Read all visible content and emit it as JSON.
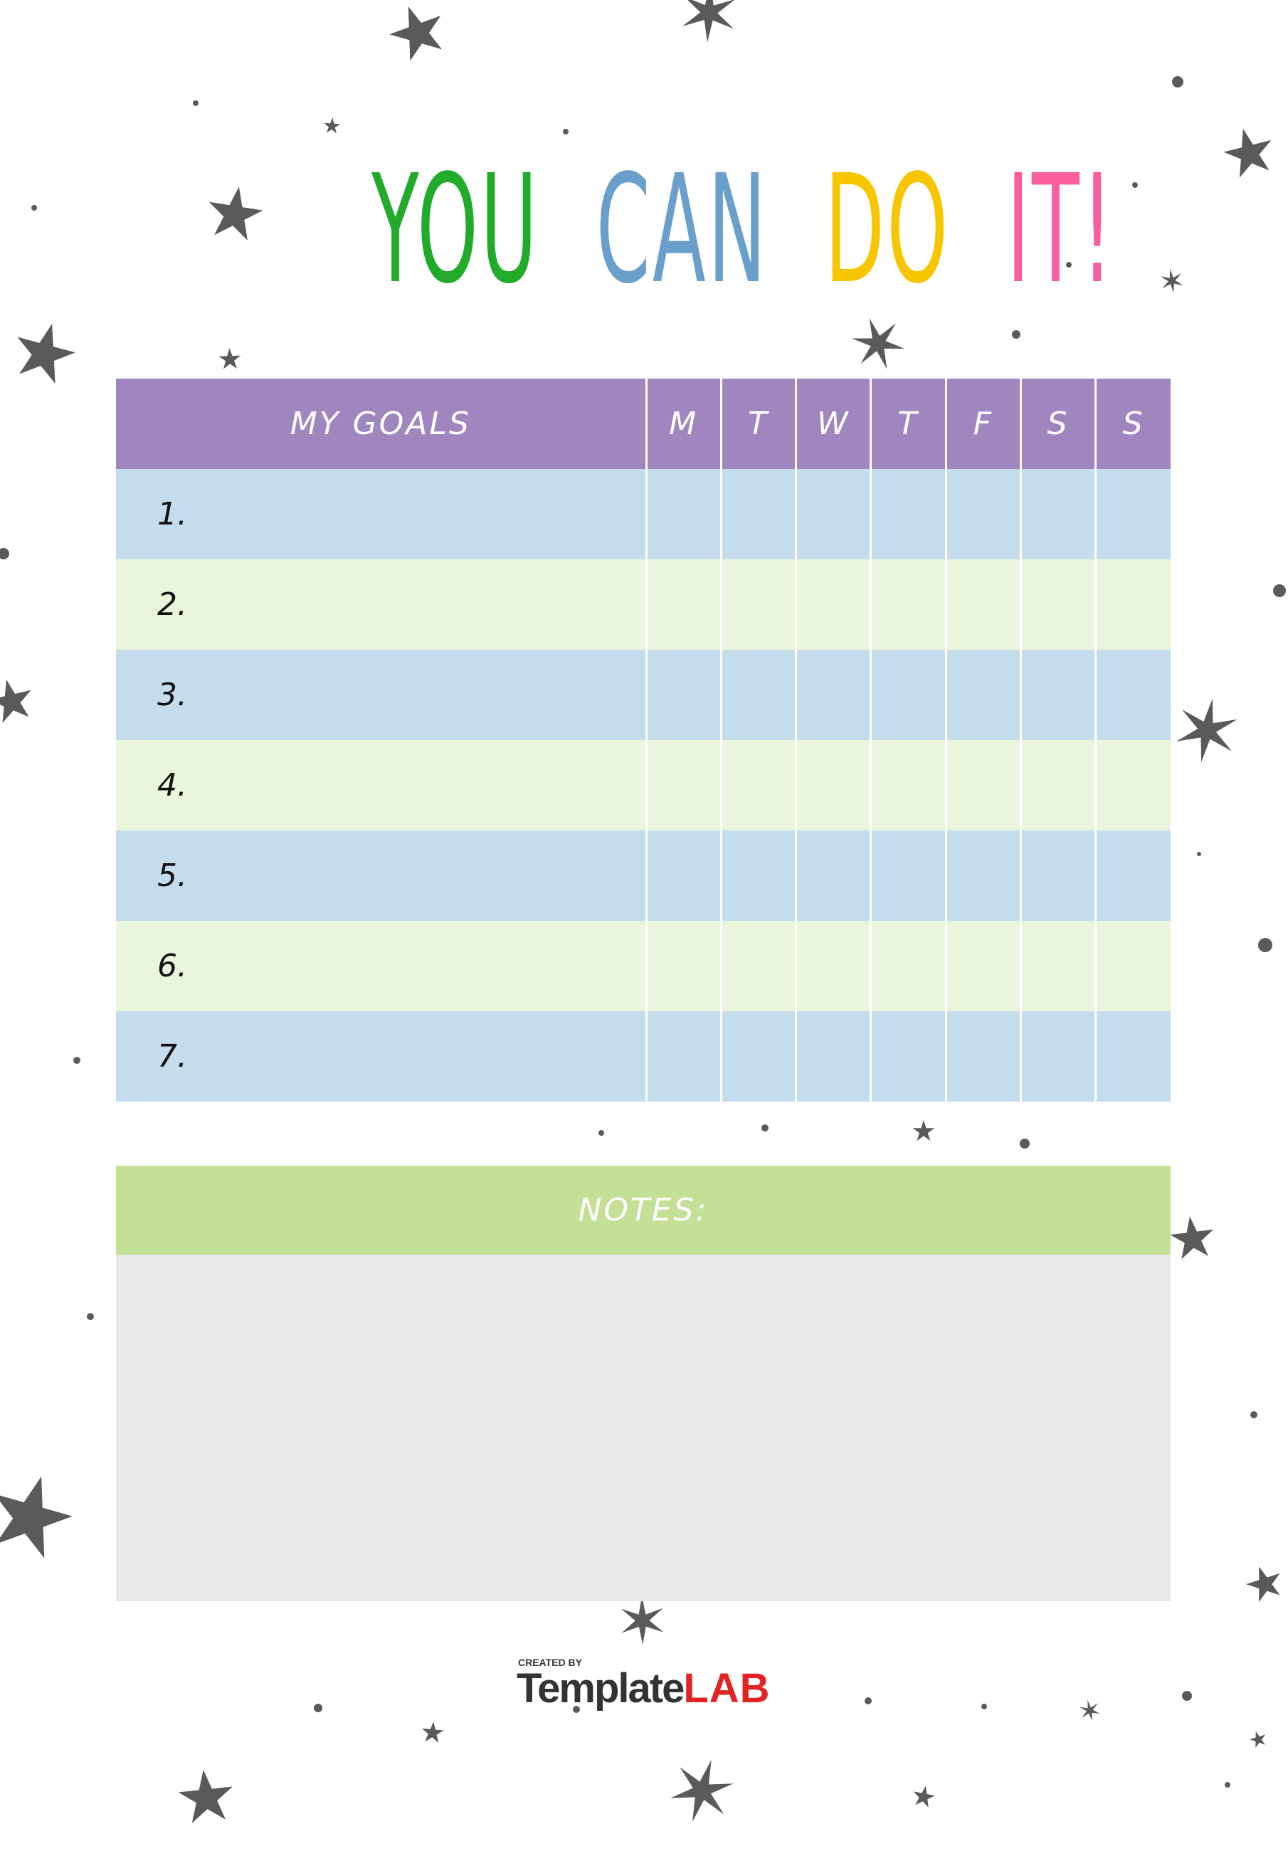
{
  "title": {
    "words": [
      {
        "text": "YOU",
        "color": "#22aa2a"
      },
      {
        "text": "CAN",
        "color": "#6a9fcc"
      },
      {
        "text": "DO",
        "color": "#f7c600"
      },
      {
        "text": "IT!",
        "color": "#f85f9c"
      }
    ]
  },
  "goals_table": {
    "header": "MY GOALS",
    "days": [
      "M",
      "T",
      "W",
      "T",
      "F",
      "S",
      "S"
    ],
    "rows": [
      "1.",
      "2.",
      "3.",
      "4.",
      "5.",
      "6.",
      "7."
    ],
    "colors": {
      "header": "#a086be",
      "row_blue": "#c4dcec",
      "row_green": "#e9f5dc"
    }
  },
  "notes": {
    "label": "NOTES:",
    "colors": {
      "header": "#c4df96",
      "body": "#e8e8e8"
    }
  },
  "logo": {
    "created_by": "CREATED BY",
    "brand_1": "Template",
    "brand_2": "LAB"
  },
  "decoration": {
    "icon": "star-icon",
    "color": "#5a5a5a"
  }
}
